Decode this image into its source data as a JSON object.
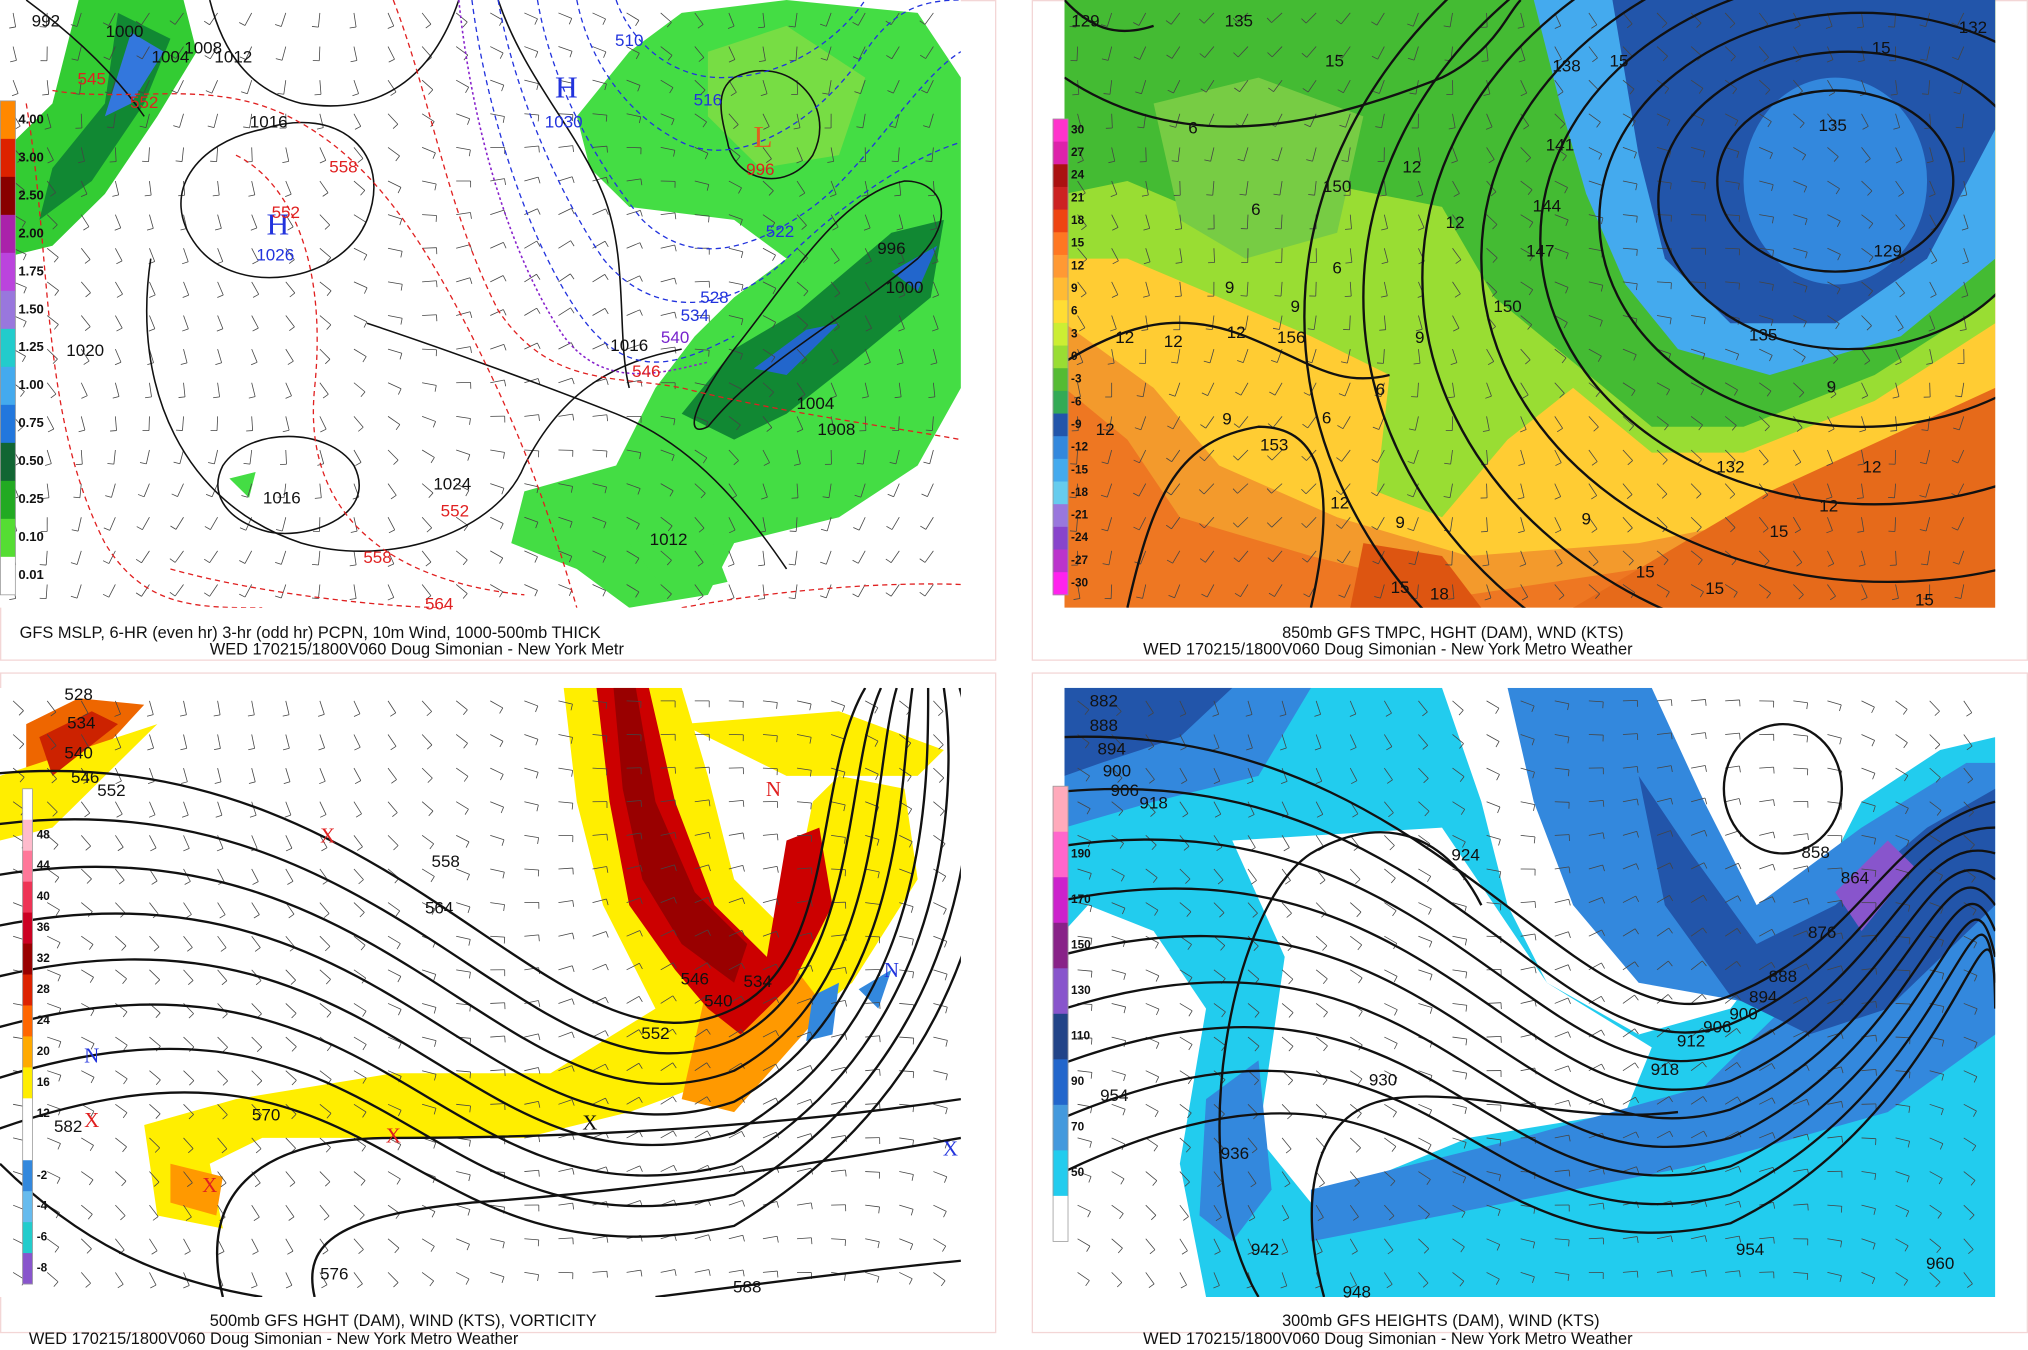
{
  "panels": [
    {
      "caption": [
        "GFS MSLP, 6-HR (even hr) 3-hr (odd hr) PCPN, 10m Wind, 1000-500mb THICK",
        "WED 170215/1800V060 Doug Simonian - New York Metr"
      ],
      "colorbar": [
        "4.00",
        "3.00",
        "2.50",
        "2.00",
        "1.75",
        "1.50",
        "1.25",
        "1.00",
        "0.75",
        "0.50",
        "0.25",
        "0.10",
        "0.01"
      ],
      "labels": [
        "992",
        "1000",
        "1004",
        "1008",
        "1012",
        "1016",
        "1020",
        "1026",
        "H",
        "H",
        "1030",
        "L",
        "996",
        "1016",
        "1024",
        "1016",
        "1012",
        "1004",
        "1008",
        "996",
        "1000",
        "545",
        "552",
        "558",
        "552",
        "558",
        "552",
        "546",
        "510",
        "516",
        "522",
        "528",
        "534",
        "540",
        "564"
      ]
    },
    {
      "caption": [
        "850mb GFS TMPC, HGHT (DAM), WND (KTS)",
        "WED 170215/1800V060 Doug Simonian - New York Metro Weather"
      ],
      "colorbar": [
        "30",
        "27",
        "24",
        "21",
        "18",
        "15",
        "12",
        "9",
        "6",
        "3",
        "0",
        "-3",
        "-6",
        "-9",
        "-12",
        "-15",
        "-18",
        "-21",
        "-24",
        "-27",
        "-30"
      ],
      "labels": [
        "129",
        "135",
        "138",
        "141",
        "144",
        "147",
        "150",
        "156",
        "153",
        "150",
        "132",
        "135",
        "129",
        "135",
        "132",
        "15",
        "15",
        "15",
        "12",
        "12",
        "9",
        "9",
        "9",
        "6",
        "6",
        "6",
        "6",
        "6",
        "12",
        "12",
        "12",
        "12",
        "9",
        "12",
        "9",
        "15",
        "18",
        "15",
        "15",
        "15",
        "12",
        "12",
        "9",
        "9",
        "15"
      ]
    },
    {
      "caption": [
        "500mb GFS HGHT (DAM), WIND (KTS), VORTICITY",
        "WED 170215/1800V060 Doug Simonian - New York Metro Weather"
      ],
      "colorbar": [
        "48",
        "44",
        "40",
        "36",
        "32",
        "28",
        "24",
        "20",
        "16",
        "12",
        "-2",
        "-4",
        "-6",
        "-8"
      ],
      "labels": [
        "528",
        "534",
        "540",
        "546",
        "552",
        "558",
        "564",
        "570",
        "576",
        "582",
        "588",
        "546",
        "552",
        "540",
        "534",
        "N",
        "X",
        "X",
        "X",
        "X",
        "N",
        "X",
        "X",
        "N"
      ]
    },
    {
      "caption": [
        "300mb GFS HEIGHTS (DAM), WIND (KTS)",
        "WED 170215/1800V060 Doug Simonian - New York Metro Weather"
      ],
      "colorbar": [
        "190",
        "170",
        "150",
        "130",
        "110",
        "90",
        "70",
        "50"
      ],
      "labels": [
        "882",
        "888",
        "894",
        "900",
        "906",
        "918",
        "924",
        "930",
        "936",
        "942",
        "948",
        "954",
        "954",
        "960",
        "918",
        "912",
        "906",
        "900",
        "894",
        "888",
        "876",
        "864",
        "858"
      ]
    }
  ]
}
